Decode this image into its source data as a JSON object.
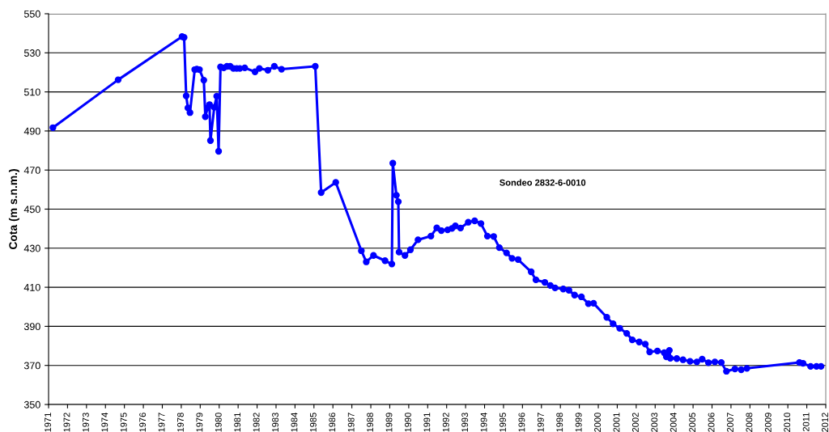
{
  "chart_data": {
    "type": "line",
    "ylabel": "Cota (m s.n.m.)",
    "annotations": [
      "Sondeo 2832-6-0010"
    ],
    "x": [
      1971.23,
      1974.67,
      1978.04,
      1978.15,
      1978.26,
      1978.35,
      1978.46,
      1978.71,
      1978.82,
      1978.96,
      1979.19,
      1979.27,
      1979.39,
      1979.49,
      1979.54,
      1979.74,
      1979.87,
      1979.97,
      1980.07,
      1980.24,
      1980.41,
      1980.58,
      1980.75,
      1980.92,
      1981.09,
      1981.35,
      1981.89,
      1982.12,
      1982.57,
      1982.91,
      1983.29,
      1985.07,
      1985.38,
      1986.15,
      1987.5,
      1987.76,
      1988.14,
      1988.75,
      1989.11,
      1989.16,
      1989.35,
      1989.45,
      1989.49,
      1989.8,
      1990.09,
      1990.49,
      1991.17,
      1991.48,
      1991.72,
      1992.05,
      1992.28,
      1992.46,
      1992.73,
      1993.14,
      1993.48,
      1993.81,
      1994.15,
      1994.48,
      1994.78,
      1995.16,
      1995.45,
      1995.77,
      1996.46,
      1996.71,
      1997.18,
      1997.47,
      1997.72,
      1998.15,
      1998.45,
      1998.75,
      1999.11,
      1999.48,
      1999.75,
      2000.45,
      2000.78,
      2001.13,
      2001.5,
      2001.79,
      2002.16,
      2002.48,
      2002.71,
      2003.12,
      2003.48,
      2003.59,
      2003.75,
      2003.8,
      2004.14,
      2004.47,
      2004.84,
      2005.2,
      2005.48,
      2005.81,
      2006.15,
      2006.49,
      2006.76,
      2007.21,
      2007.54,
      2007.84,
      2010.61,
      2010.8,
      2011.2,
      2011.51,
      2011.75
    ],
    "series": [
      {
        "color": "#0000ff",
        "values": [
          491.7,
          516.2,
          538.3,
          537.9,
          508.0,
          501.8,
          499.4,
          521.4,
          521.7,
          521.4,
          516.0,
          497.3,
          501.8,
          503.5,
          485.1,
          502.1,
          507.8,
          479.6,
          522.8,
          522.3,
          523.1,
          523.1,
          522.0,
          522.0,
          522.0,
          522.3,
          520.3,
          522.0,
          521.1,
          523.1,
          521.6,
          523.1,
          458.5,
          463.7,
          428.7,
          423.0,
          426.3,
          423.6,
          421.9,
          473.5,
          457.1,
          453.8,
          428.0,
          426.3,
          429.2,
          434.3,
          436.2,
          440.4,
          439.0,
          439.4,
          440.1,
          441.4,
          440.3,
          443.3,
          444.0,
          442.6,
          436.2,
          436.0,
          430.3,
          427.6,
          424.8,
          424.2,
          417.9,
          413.8,
          412.5,
          410.9,
          409.7,
          409.1,
          408.5,
          406.0,
          405.1,
          401.6,
          401.8,
          394.6,
          391.3,
          389.0,
          386.4,
          383.1,
          382.0,
          380.9,
          376.9,
          377.4,
          376.5,
          374.4,
          377.7,
          373.7,
          373.5,
          372.9,
          372.1,
          371.8,
          373.2,
          371.4,
          371.8,
          371.5,
          367.0,
          368.2,
          367.8,
          368.5,
          371.5,
          371.1,
          369.5,
          369.5,
          369.5
        ]
      }
    ],
    "xlim": [
      1971,
      2012
    ],
    "xticks": [
      1971,
      1972,
      1973,
      1974,
      1975,
      1976,
      1977,
      1978,
      1979,
      1980,
      1981,
      1982,
      1983,
      1984,
      1985,
      1986,
      1987,
      1988,
      1989,
      1990,
      1991,
      1992,
      1993,
      1994,
      1995,
      1996,
      1997,
      1998,
      1999,
      2000,
      2001,
      2002,
      2003,
      2004,
      2005,
      2006,
      2007,
      2008,
      2009,
      2010,
      2011,
      2012
    ],
    "ylim": [
      350,
      550
    ],
    "yticks": [
      350,
      370,
      390,
      410,
      430,
      450,
      470,
      490,
      510,
      530,
      550
    ],
    "grid": "y",
    "legend": false,
    "marker": "circle",
    "line_style": "solid"
  }
}
